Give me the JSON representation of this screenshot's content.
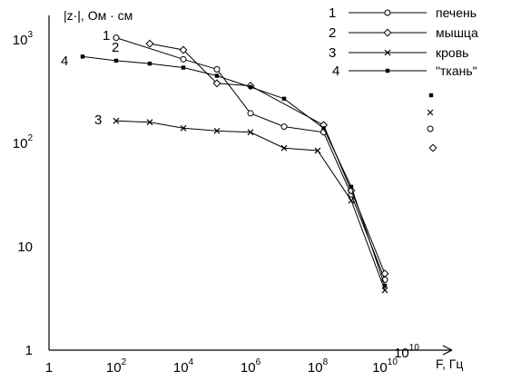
{
  "chart_data": {
    "type": "line",
    "ylabel": "|z·|, Ом · см",
    "xlabel": "F, Гц",
    "x_scale": "log",
    "y_scale": "log",
    "xlim": [
      1,
      10000000000
    ],
    "ylim": [
      1,
      1000
    ],
    "x_ticks": [
      {
        "value": 1,
        "base": "1",
        "exp": ""
      },
      {
        "value": 100,
        "base": "10",
        "exp": "2"
      },
      {
        "value": 10000,
        "base": "10",
        "exp": "4"
      },
      {
        "value": 1000000,
        "base": "10",
        "exp": "6"
      },
      {
        "value": 100000000,
        "base": "10",
        "exp": "8"
      },
      {
        "value": 10000000000,
        "base": "10",
        "exp": "10"
      }
    ],
    "y_ticks": [
      {
        "value": 1,
        "base": "1",
        "exp": ""
      },
      {
        "value": 10,
        "base": "10",
        "exp": ""
      },
      {
        "value": 100,
        "base": "10",
        "exp": "2"
      },
      {
        "value": 1000,
        "base": "10",
        "exp": "3"
      }
    ],
    "extra_tick_label": {
      "base": "10",
      "exp": "10"
    },
    "series": [
      {
        "name": "печень",
        "number": "1",
        "marker": "circle",
        "x": [
          100,
          10000,
          100000,
          1000000,
          10000000,
          150000000,
          1000000000,
          10000000000
        ],
        "y": [
          1050,
          650,
          520,
          195,
          145,
          128,
          32,
          4.8
        ]
      },
      {
        "name": "мышца",
        "number": "2",
        "marker": "diamond",
        "x": [
          1000,
          10000,
          100000,
          1000000,
          150000000,
          1000000000,
          10000000000
        ],
        "y": [
          920,
          800,
          380,
          360,
          150,
          35,
          5.5
        ]
      },
      {
        "name": "кровь",
        "number": "3",
        "marker": "cross",
        "x": [
          100,
          1000,
          10000,
          100000,
          1000000,
          10000000,
          100000000,
          1000000000,
          10000000000
        ],
        "y": [
          165,
          160,
          140,
          132,
          128,
          90,
          85,
          28,
          3.8
        ]
      },
      {
        "name": "\"ткань\"",
        "number": "4",
        "marker": "square",
        "x": [
          10,
          100,
          1000,
          10000,
          100000,
          1000000,
          10000000,
          150000000,
          1000000000,
          10000000000
        ],
        "y": [
          690,
          630,
          590,
          540,
          450,
          350,
          270,
          140,
          38,
          4.2
        ]
      }
    ],
    "curve_labels": [
      "1",
      "2",
      "3",
      "4"
    ],
    "legend_position": "top-right"
  }
}
